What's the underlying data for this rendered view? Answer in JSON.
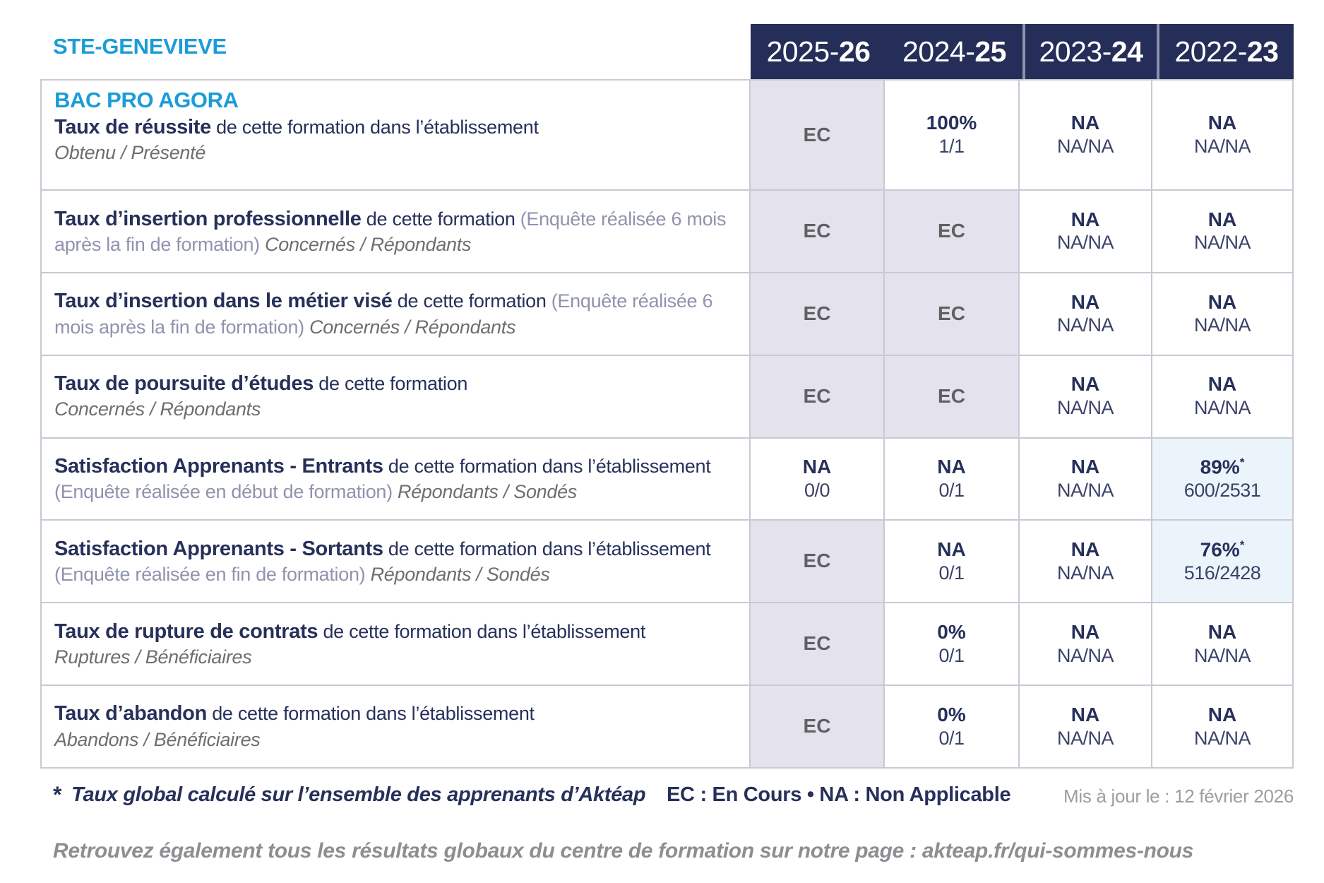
{
  "colors": {
    "brand_cyan": "#1b9cd8",
    "navy": "#26305a",
    "header_bg": "#252e58",
    "gray_cell_bg": "#e4e3ed",
    "blue_cell_bg": "#ebf4fb",
    "border": "#c9c9d4",
    "ec_text": "#606063",
    "muted_gray": "#6e6e71"
  },
  "site": "STE-GENEVIEVE",
  "program": "BAC PRO AGORA",
  "years": [
    {
      "prefix": "2025-",
      "suffix": "26"
    },
    {
      "prefix": "2024-",
      "suffix": "25"
    },
    {
      "prefix": "2023-",
      "suffix": "24"
    },
    {
      "prefix": "2022-",
      "suffix": "23"
    }
  ],
  "rows": [
    {
      "bold": "Taux de réussite",
      "normal": " de cette formation dans l’établissement",
      "paren": "",
      "tail": "",
      "subline": "Obtenu / Présenté",
      "cells": [
        {
          "main": "EC",
          "sup": "",
          "sub": "",
          "cls": "bg-gray ec"
        },
        {
          "main": "100%",
          "sup": "",
          "sub": "1/1",
          "cls": ""
        },
        {
          "main": "NA",
          "sup": "",
          "sub": "NA/NA",
          "cls": ""
        },
        {
          "main": "NA",
          "sup": "",
          "sub": "NA/NA",
          "cls": ""
        }
      ]
    },
    {
      "bold": "Taux d’insertion professionnelle",
      "normal": " de cette formation ",
      "paren": "(Enquête réalisée 6 mois après la fin de formation) ",
      "tail": "Concernés / Répondants",
      "subline": "",
      "cells": [
        {
          "main": "EC",
          "sup": "",
          "sub": "",
          "cls": "bg-gray ec"
        },
        {
          "main": "EC",
          "sup": "",
          "sub": "",
          "cls": "bg-gray ec"
        },
        {
          "main": "NA",
          "sup": "",
          "sub": "NA/NA",
          "cls": ""
        },
        {
          "main": "NA",
          "sup": "",
          "sub": "NA/NA",
          "cls": ""
        }
      ]
    },
    {
      "bold": "Taux d’insertion dans le métier visé",
      "normal": " de cette formation ",
      "paren": "(Enquête réalisée 6 mois après la fin de formation) ",
      "tail": "Concernés / Répondants",
      "subline": "",
      "cells": [
        {
          "main": "EC",
          "sup": "",
          "sub": "",
          "cls": "bg-gray ec"
        },
        {
          "main": "EC",
          "sup": "",
          "sub": "",
          "cls": "bg-gray ec"
        },
        {
          "main": "NA",
          "sup": "",
          "sub": "NA/NA",
          "cls": ""
        },
        {
          "main": "NA",
          "sup": "",
          "sub": "NA/NA",
          "cls": ""
        }
      ]
    },
    {
      "bold": "Taux de poursuite d’études",
      "normal": " de cette formation",
      "paren": "",
      "tail": "",
      "subline": "Concernés / Répondants",
      "cells": [
        {
          "main": "EC",
          "sup": "",
          "sub": "",
          "cls": "bg-gray ec"
        },
        {
          "main": "EC",
          "sup": "",
          "sub": "",
          "cls": "bg-gray ec"
        },
        {
          "main": "NA",
          "sup": "",
          "sub": "NA/NA",
          "cls": ""
        },
        {
          "main": "NA",
          "sup": "",
          "sub": "NA/NA",
          "cls": ""
        }
      ]
    },
    {
      "bold": "Satisfaction Apprenants - Entrants",
      "normal": " de cette formation dans l’établissement ",
      "paren": "(Enquête réalisée en début de formation) ",
      "tail": "Répondants / Sondés",
      "subline": "",
      "cells": [
        {
          "main": "NA",
          "sup": "",
          "sub": "0/0",
          "cls": ""
        },
        {
          "main": "NA",
          "sup": "",
          "sub": "0/1",
          "cls": ""
        },
        {
          "main": "NA",
          "sup": "",
          "sub": "NA/NA",
          "cls": ""
        },
        {
          "main": "89%",
          "sup": "*",
          "sub": "600/2531",
          "cls": "bg-blue"
        }
      ]
    },
    {
      "bold": "Satisfaction Apprenants - Sortants",
      "normal": " de cette formation dans l’établissement ",
      "paren": "(Enquête réalisée en fin de formation) ",
      "tail": "Répondants / Sondés",
      "subline": "",
      "cells": [
        {
          "main": "EC",
          "sup": "",
          "sub": "",
          "cls": "bg-gray ec"
        },
        {
          "main": "NA",
          "sup": "",
          "sub": "0/1",
          "cls": ""
        },
        {
          "main": "NA",
          "sup": "",
          "sub": "NA/NA",
          "cls": ""
        },
        {
          "main": "76%",
          "sup": "*",
          "sub": "516/2428",
          "cls": "bg-blue"
        }
      ]
    },
    {
      "bold": "Taux de rupture de contrats",
      "normal": " de cette formation dans l’établissement",
      "paren": "",
      "tail": "",
      "subline": "Ruptures / Bénéficiaires",
      "cells": [
        {
          "main": "EC",
          "sup": "",
          "sub": "",
          "cls": "bg-gray ec"
        },
        {
          "main": "0%",
          "sup": "",
          "sub": "0/1",
          "cls": ""
        },
        {
          "main": "NA",
          "sup": "",
          "sub": "NA/NA",
          "cls": ""
        },
        {
          "main": "NA",
          "sup": "",
          "sub": "NA/NA",
          "cls": ""
        }
      ]
    },
    {
      "bold": "Taux d’abandon",
      "normal": " de cette formation dans l’établissement",
      "paren": "",
      "tail": "",
      "subline": "Abandons / Bénéficiaires",
      "cells": [
        {
          "main": "EC",
          "sup": "",
          "sub": "",
          "cls": "bg-gray ec"
        },
        {
          "main": "0%",
          "sup": "",
          "sub": "0/1",
          "cls": ""
        },
        {
          "main": "NA",
          "sup": "",
          "sub": "NA/NA",
          "cls": ""
        },
        {
          "main": "NA",
          "sup": "",
          "sub": "NA/NA",
          "cls": ""
        }
      ]
    }
  ],
  "footer": {
    "footnote_star": "*",
    "footnote_text": "Taux global calculé sur l’ensemble des apprenants d’Aktéap",
    "legend": "EC : En Cours   •   NA : Non Applicable",
    "updated": "Mis à jour le : 12 février 2026",
    "bottom_note": "Retrouvez également tous les résultats globaux du centre de formation sur notre page : akteap.fr/qui-sommes-nous"
  }
}
